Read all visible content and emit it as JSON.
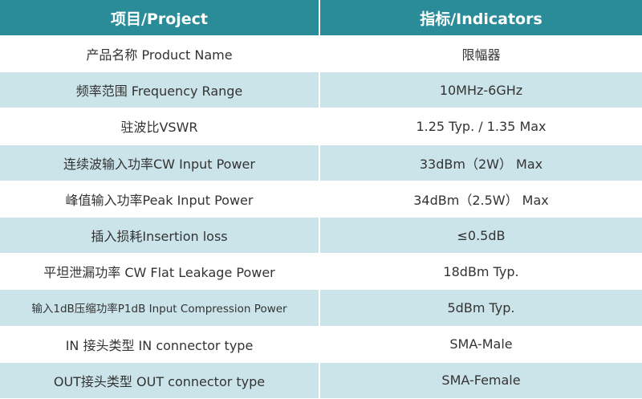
{
  "table": {
    "header": [
      "项目/Project",
      "指标/Indicators"
    ],
    "rows": [
      [
        "产品名称 Product Name",
        "限幅器"
      ],
      [
        "频率范围 Frequency Range",
        "10MHz-6GHz"
      ],
      [
        "驻波比VSWR",
        "1.25 Typ. / 1.35 Max"
      ],
      [
        "连续波输入功率CW Input Power",
        "33dBm（2W） Max"
      ],
      [
        "峰值输入功率Peak Input Power",
        "34dBm（2.5W） Max"
      ],
      [
        "插入损耗Insertion loss",
        "≤0.5dB"
      ],
      [
        "平坦泄漏功率 CW Flat Leakage Power",
        "18dBm Typ."
      ],
      [
        "输入1dB压缩功率P1dB Input Compression Power",
        "5dBm Typ."
      ],
      [
        "IN 接头类型 IN connector type",
        "SMA-Male"
      ],
      [
        "OUT接头类型 OUT connector type",
        "SMA-Female"
      ]
    ]
  }
}
